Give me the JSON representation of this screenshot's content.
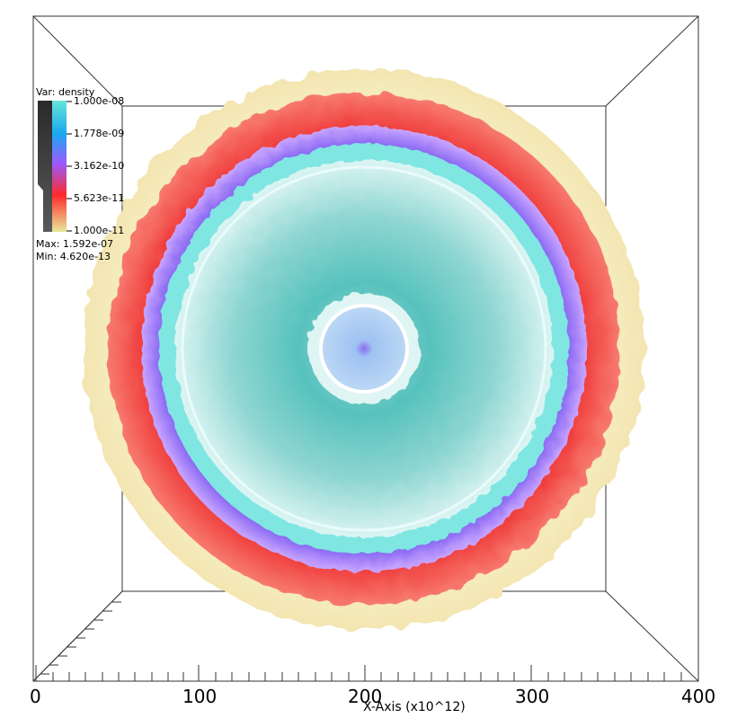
{
  "legend": {
    "title": "Var: density",
    "ticks": [
      "1.000e-08",
      "1.778e-09",
      "3.162e-10",
      "5.623e-11",
      "1.000e-11"
    ],
    "max_label": "Max:",
    "max_value": "1.592e-07",
    "min_label": "Min:",
    "min_value": "4.620e-13",
    "colors": [
      "#66e6d8",
      "#1aa8f0",
      "#9b59ff",
      "#ff2a2a",
      "#e8e89a"
    ]
  },
  "x_axis": {
    "title": "X-Axis (x10^12)",
    "tick_labels": [
      "0",
      "100",
      "200",
      "300",
      "400"
    ],
    "range": [
      0,
      400
    ]
  },
  "colors": {
    "outer_shell": "#f7f2c8",
    "red_shell": "#f04848",
    "violet_shell": "#8f62f0",
    "cyan_ring": "#5fe0dc",
    "interior": "#bde9e6",
    "core": "#a9cff2"
  }
}
